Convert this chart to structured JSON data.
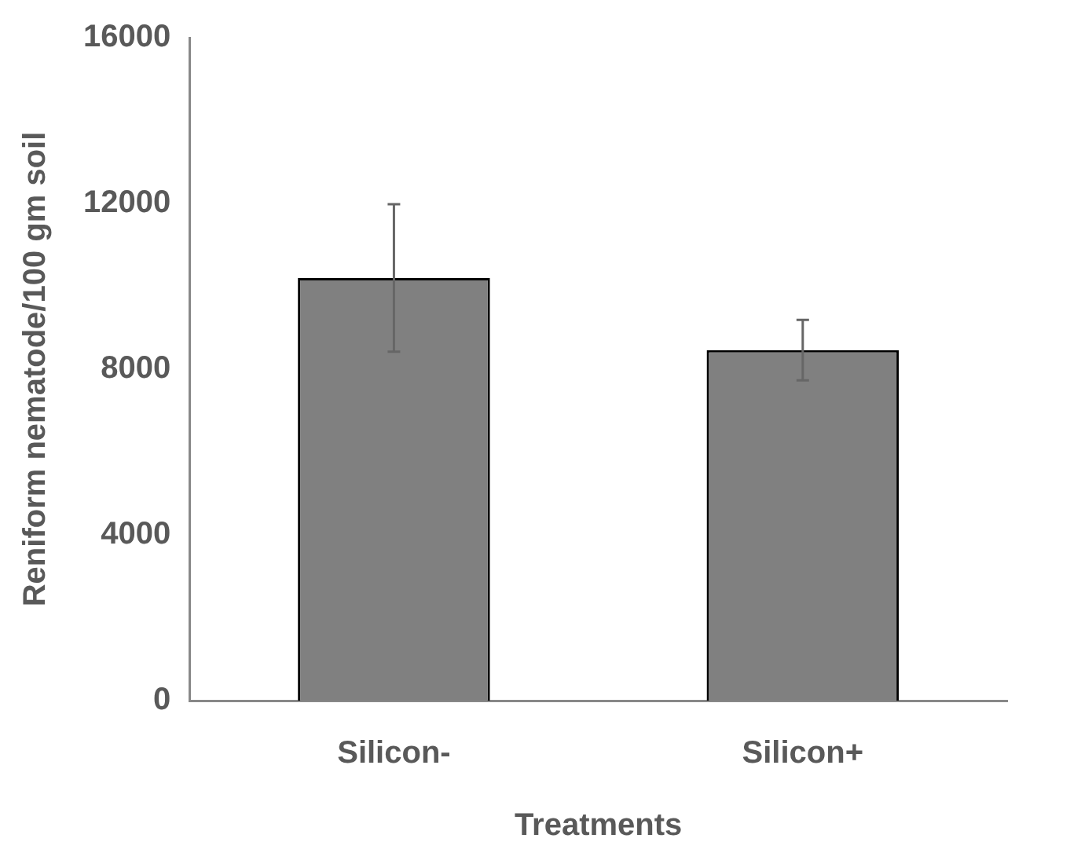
{
  "chart_data": {
    "type": "bar",
    "xlabel": "Treatments",
    "ylabel": "Reniform nematode/100 gm soil",
    "categories": [
      "Silicon-",
      "Silicon+"
    ],
    "values": [
      10200,
      8460
    ],
    "errors": [
      1780,
      730
    ],
    "color": "#808080",
    "ylim": [
      0,
      16000
    ],
    "yticks": [
      0,
      4000,
      8000,
      12000,
      16000
    ],
    "grid": false
  }
}
